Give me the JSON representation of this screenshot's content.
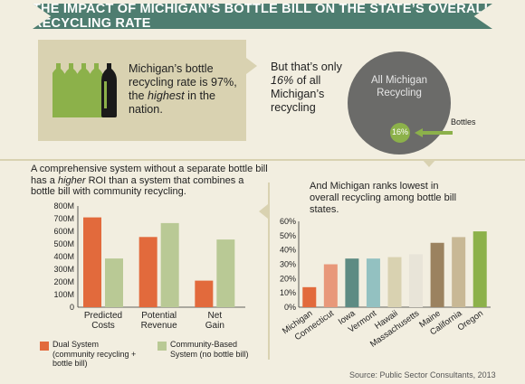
{
  "banner": {
    "title": "THE IMPACT OF MICHIGAN’S BOTTLE BILL ON THE STATE’S OVERALL RECYCLING RATE"
  },
  "top": {
    "box_text": [
      {
        "t": "Michigan’s bottle recycling rate is 97%, the ",
        "s": "normal"
      },
      {
        "t": "highest",
        "s": "italic"
      },
      {
        "t": " in the nation.",
        "s": "normal"
      }
    ],
    "mid_text": [
      {
        "t": "But that’s only ",
        "s": "normal"
      },
      {
        "t": "16%",
        "s": "italic"
      },
      {
        "t": " of all Michigan’s recycling",
        "s": "normal"
      }
    ],
    "circle_label": "All Michigan Recycling",
    "small_circle_label": "16%",
    "bottles_label": "Bottles",
    "colors": {
      "box": "#d9d2b1",
      "circle": "#6b6b69",
      "small": "#8cb14a",
      "bottle": "#8cb14a",
      "bottle_dark": "#1a1a1a"
    }
  },
  "left_title": [
    {
      "t": "A comprehensive system without a separate bottle bill has a ",
      "s": "normal"
    },
    {
      "t": "higher",
      "s": "italic"
    },
    {
      "t": " ROI than a system that combines a bottle bill with community recycling.",
      "s": "normal"
    }
  ],
  "right_title": "And Michigan ranks lowest in overall recycling among bottle bill states.",
  "legend": {
    "dual": "Dual System (community recycling + bottle bill)",
    "community": "Community-Based System (no bottle bill)"
  },
  "source": "Source: Public Sector Consultants, 2013",
  "chart_data": [
    {
      "type": "bar",
      "categories": [
        "Predicted Costs",
        "Potential Revenue",
        "Net Gain"
      ],
      "series": [
        {
          "name": "Dual System (community recycling + bottle bill)",
          "color": "#e26a3c",
          "values": [
            710,
            555,
            210
          ]
        },
        {
          "name": "Community-Based System (no bottle bill)",
          "color": "#b9c995",
          "values": [
            385,
            665,
            535
          ]
        }
      ],
      "ylim": [
        0,
        800
      ],
      "yticks": [
        "0",
        "100M",
        "200M",
        "300M",
        "400M",
        "500M",
        "600M",
        "700M",
        "800M"
      ],
      "legend": "bottom"
    },
    {
      "type": "bar",
      "categories": [
        "Michigan",
        "Connecticut",
        "Iowa",
        "Vermont",
        "Hawaii",
        "Massachusetts",
        "Maine",
        "California",
        "Oregon"
      ],
      "values": [
        14,
        30,
        34,
        34,
        35,
        37,
        45,
        49,
        53
      ],
      "colors": [
        "#e26a3c",
        "#e8987a",
        "#5d8b83",
        "#93c1c1",
        "#d9d2b1",
        "#e8e4d8",
        "#9b825f",
        "#c8b895",
        "#8cb14a"
      ],
      "ylim": [
        0,
        60
      ],
      "yticks": [
        "0%",
        "10%",
        "20%",
        "30%",
        "40%",
        "50%",
        "60%"
      ]
    }
  ]
}
